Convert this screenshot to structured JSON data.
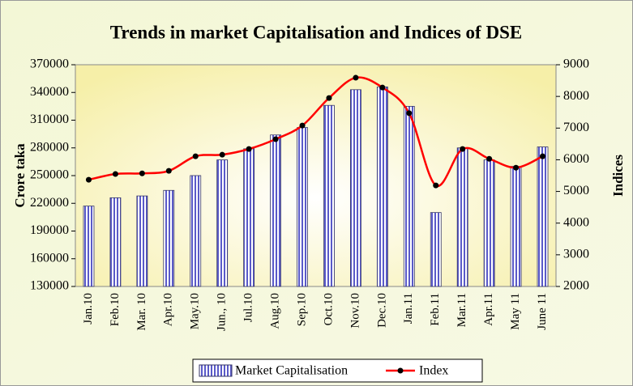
{
  "chart_data": {
    "type": "bar_line",
    "title": "Trends in market Capitalisation and Indices of DSE",
    "y_label": "Crore taka",
    "y2_label": "Indices",
    "categories": [
      "Jan.10",
      "Feb.10",
      "Mar. 10",
      "Apr.10",
      "May.10",
      "Jun., 10",
      "Jul.10",
      "Aug.10",
      "Sep.10",
      "Oct.10",
      "Nov.10",
      "Dec.10",
      "Jan.11",
      "Feb.11",
      "Mar.11",
      "Apr.11",
      "May 11",
      "June 11"
    ],
    "series": [
      {
        "name": "Market Capitalisation",
        "type": "bar",
        "color": "#6666cc",
        "values": [
          217000,
          226000,
          228000,
          234000,
          250000,
          267000,
          279000,
          294000,
          302000,
          326000,
          343000,
          346000,
          325000,
          210000,
          280000,
          267000,
          260000,
          281000
        ]
      },
      {
        "name": "Index",
        "type": "line",
        "axis": "y2",
        "color": "#ff0000",
        "values": [
          5370,
          5550,
          5570,
          5650,
          6110,
          6160,
          6340,
          6650,
          7080,
          7950,
          8590,
          8280,
          7470,
          5190,
          6340,
          6030,
          5750,
          6110
        ]
      }
    ],
    "ylim": [
      130000,
      370000
    ],
    "yticks": [
      130000,
      160000,
      190000,
      220000,
      250000,
      280000,
      310000,
      340000,
      370000
    ],
    "y2lim": [
      2000,
      9000
    ],
    "y2ticks": [
      2000,
      3000,
      4000,
      5000,
      6000,
      7000,
      8000,
      9000
    ],
    "legend": "bottom"
  }
}
